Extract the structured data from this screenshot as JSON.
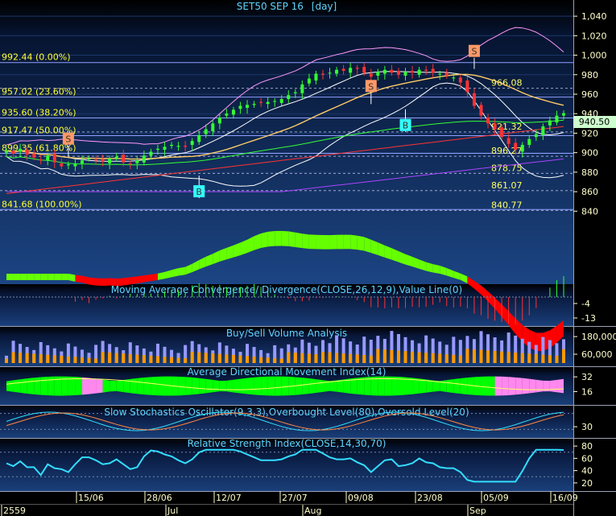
{
  "chart_data": [
    {
      "type": "candlestick",
      "title": "SET50 SEP 16",
      "period": "[day]",
      "y_ticks": [
        840,
        860,
        880,
        900,
        920,
        940,
        960,
        980,
        1000,
        1020,
        1040
      ],
      "y_labels": [
        "840",
        "860",
        "880",
        "900",
        "920",
        "940",
        "960",
        "980",
        "1,000",
        "1,020",
        "1,040"
      ],
      "ylim": [
        832,
        1050
      ],
      "last_price": "940.50",
      "fib_levels": [
        {
          "value": 992.44,
          "label": "992.44 (0.00%)"
        },
        {
          "value": 957.02,
          "label": "957.02 (23.60%)"
        },
        {
          "value": 935.6,
          "label": "935.60 (38.20%)"
        },
        {
          "value": 917.47,
          "label": "917.47 (50.00%)"
        },
        {
          "value": 899.35,
          "label": "899.35 (61.80%)"
        },
        {
          "value": 841.68,
          "label": "841.68 (100.00%)"
        }
      ],
      "right_levels": [
        {
          "value": 966.08,
          "label": "966.08"
        },
        {
          "value": 921.32,
          "label": "921.32"
        },
        {
          "value": 896.27,
          "label": "896.27"
        },
        {
          "value": 878.75,
          "label": "878.75"
        },
        {
          "value": 861.07,
          "label": "861.07"
        },
        {
          "value": 840.77,
          "label": "840.77"
        }
      ],
      "closes": [
        902,
        899,
        904,
        898,
        895,
        892,
        897,
        890,
        886,
        888,
        889,
        892,
        894,
        892,
        891,
        894,
        896,
        890,
        888,
        892,
        897,
        901,
        904,
        906,
        908,
        907,
        906,
        912,
        918,
        924,
        930,
        936,
        940,
        944,
        948,
        949,
        950,
        951,
        952,
        953,
        955,
        959,
        962,
        970,
        976,
        981,
        980,
        982,
        985,
        984,
        987,
        986,
        982,
        978,
        983,
        985,
        982,
        980,
        983,
        982,
        985,
        984,
        982,
        981,
        979,
        977,
        972,
        962,
        948,
        938,
        930,
        924,
        916,
        909,
        903,
        908,
        914,
        919,
        927,
        933,
        938,
        940.5
      ],
      "signals": [
        {
          "label": "S",
          "type": "sell",
          "index": 9,
          "price": 914
        },
        {
          "label": "S",
          "type": "sell",
          "index": 53,
          "price": 968
        },
        {
          "label": "S",
          "type": "sell",
          "index": 68,
          "price": 1004
        },
        {
          "label": "B",
          "type": "buy",
          "index": 28,
          "price": 860
        },
        {
          "label": "B",
          "type": "buy",
          "index": 58,
          "price": 928
        }
      ]
    },
    {
      "type": "area",
      "title": "Moving Average Convergence/ Divergence(CLOSE,26,12,9),Value Line(0)",
      "y_labels": [
        "-4",
        "-13"
      ],
      "y_ticks": [
        -4,
        -13
      ],
      "ylim": [
        -16,
        6
      ]
    },
    {
      "type": "bar",
      "title": "Buy/Sell Volume Analysis",
      "y_labels": [
        "180,000",
        "60,000"
      ],
      "y_ticks": [
        180000,
        60000
      ],
      "ylim": [
        0,
        230000
      ]
    },
    {
      "type": "area",
      "title": "Average Directional Movement Index(14)",
      "y_labels": [
        "32",
        "16"
      ],
      "y_ticks": [
        32,
        16
      ],
      "ylim": [
        5,
        40
      ]
    },
    {
      "type": "line",
      "title": "Slow Stochastics Oscillator(9,3,3),Overbought Level(80),Oversold Level(20)",
      "y_labels": [
        "30"
      ],
      "y_ticks": [
        30
      ],
      "ylim": [
        0,
        100
      ],
      "levels": [
        80,
        20
      ]
    },
    {
      "type": "line",
      "title": "Relative Strength Index(CLOSE,14,30,70)",
      "y_labels": [
        "80",
        "60",
        "40",
        "20"
      ],
      "y_ticks": [
        80,
        60,
        40,
        20
      ],
      "ylim": [
        12,
        88
      ],
      "levels": [
        70,
        30
      ]
    }
  ],
  "x_axis": {
    "date_labels": [
      "15/06",
      "28/06",
      "12/07",
      "27/07",
      "09/08",
      "23/08",
      "05/09",
      "16/09"
    ],
    "month_labels": [
      "2559",
      "Jul",
      "Aug",
      "Sep"
    ]
  },
  "colors": {
    "background": "#000000",
    "panel_top": "#183e7a",
    "axis_text": "#ffffcc",
    "title_text": "#5fd4ff",
    "up_candle": "#33ff33",
    "down_candle": "#ff3333",
    "macd_pos": "#66ff00",
    "macd_neg": "#ff0000",
    "buy_volume": "#ff9900",
    "sell_volume": "#9999ff",
    "adx_green": "#00ff00",
    "adx_pink": "#ff88ee",
    "rsi_line": "#33ddff"
  }
}
